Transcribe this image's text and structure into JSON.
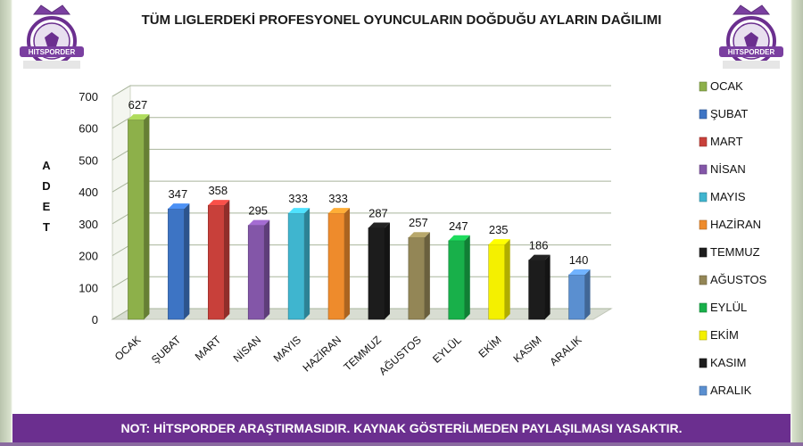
{
  "header": {
    "title": "TÜM LIGLERDEKİ PROFESYONEL OYUNCULARIN DOĞDUĞU AYLARIN DAĞILIMI",
    "logo_text": "HITSPORDER"
  },
  "footer": {
    "note": "NOT: HİTSPORDER ARAŞTIRMASIDIR. KAYNAK GÖSTERİLMEDEN PAYLAŞILMASI YASAKTIR."
  },
  "chart_data": {
    "type": "bar",
    "title": "TÜM LIGLERDEKİ PROFESYONEL OYUNCULARIN DOĞDUĞU AYLARIN DAĞILIMI",
    "xlabel": "",
    "ylabel": "ADET",
    "ylim": [
      0,
      700
    ],
    "yticks": [
      0,
      100,
      200,
      300,
      400,
      500,
      600,
      700
    ],
    "grid": true,
    "legend_position": "right",
    "categories": [
      "OCAK",
      "ŞUBAT",
      "MART",
      "NİSAN",
      "MAYIS",
      "HAZİRAN",
      "TEMMUZ",
      "AĞUSTOS",
      "EYLÜL",
      "EKİM",
      "KASIM",
      "ARALIK"
    ],
    "values": [
      627,
      347,
      358,
      295,
      333,
      333,
      287,
      257,
      247,
      235,
      186,
      140
    ],
    "colors": [
      "#8db04a",
      "#3d74c4",
      "#c8403a",
      "#8356a8",
      "#3fb5cf",
      "#ee8b2c",
      "#1c1c1c",
      "#938656",
      "#18b04a",
      "#f4f000",
      "#1c1c1c",
      "#5a8fd0"
    ]
  }
}
